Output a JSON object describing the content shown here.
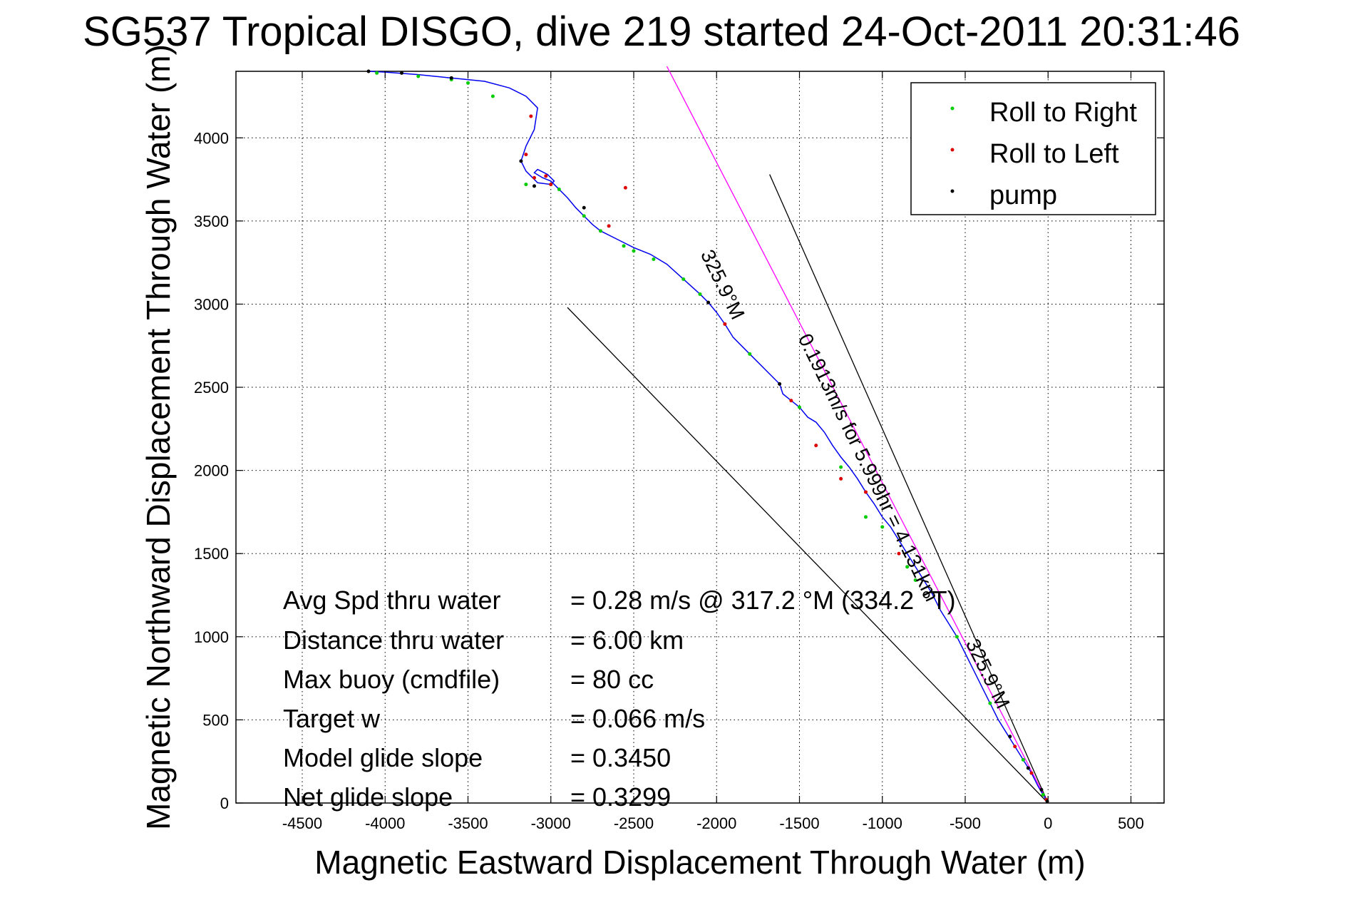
{
  "chart_data": {
    "type": "line",
    "title": "SG537 Tropical DISGO, dive 219 started 24-Oct-2011 20:31:46",
    "xlabel": "Magnetic Eastward Displacement Through Water (m)",
    "ylabel": "Magnetic Northward Displacement Through Water (m)",
    "xlim": [
      -4900,
      700
    ],
    "ylim": [
      0,
      4400
    ],
    "xticks": [
      -4500,
      -4000,
      -3500,
      -3000,
      -2500,
      -2000,
      -1500,
      -1000,
      -500,
      0,
      500
    ],
    "yticks": [
      0,
      500,
      1000,
      1500,
      2000,
      2500,
      3000,
      3500,
      4000
    ],
    "grid": true,
    "legend_position": "top-right",
    "legend": [
      {
        "label": "Roll to Right",
        "color": "#00cc00"
      },
      {
        "label": "Roll to Left",
        "color": "#dd0000"
      },
      {
        "label": "pump",
        "color": "#000000"
      }
    ],
    "track_color": "#0000ee",
    "series": [
      {
        "name": "track",
        "x": [
          0,
          -30,
          -60,
          -100,
          -150,
          -200,
          -250,
          -300,
          -350,
          -400,
          -450,
          -500,
          -550,
          -600,
          -650,
          -700,
          -750,
          -800,
          -850,
          -900,
          -950,
          -1000,
          -1050,
          -1100,
          -1150,
          -1200,
          -1250,
          -1300,
          -1350,
          -1400,
          -1450,
          -1500,
          -1550,
          -1600,
          -1620,
          -1700,
          -1800,
          -1900,
          -1950,
          -2000,
          -2050,
          -2100,
          -2200,
          -2300,
          -2400,
          -2500,
          -2600,
          -2700,
          -2750,
          -2800,
          -2850,
          -2900,
          -2950,
          -2980,
          -3000,
          -3050,
          -3100,
          -3080,
          -3020,
          -2980,
          -3000,
          -3080,
          -3150,
          -3180,
          -3150,
          -3100,
          -3080,
          -3150,
          -3250,
          -3400,
          -3600,
          -3800,
          -4000,
          -4100
        ],
        "y": [
          0,
          50,
          100,
          180,
          260,
          340,
          420,
          500,
          600,
          700,
          800,
          900,
          1000,
          1080,
          1160,
          1260,
          1340,
          1420,
          1500,
          1580,
          1660,
          1720,
          1800,
          1870,
          1950,
          2020,
          2080,
          2150,
          2230,
          2290,
          2320,
          2380,
          2420,
          2460,
          2520,
          2600,
          2700,
          2800,
          2880,
          2950,
          3010,
          3060,
          3150,
          3240,
          3300,
          3340,
          3390,
          3440,
          3480,
          3530,
          3580,
          3640,
          3690,
          3720,
          3740,
          3760,
          3790,
          3810,
          3780,
          3740,
          3720,
          3730,
          3800,
          3860,
          3950,
          4050,
          4180,
          4250,
          4300,
          4340,
          4360,
          4380,
          4395,
          4400
        ]
      },
      {
        "name": "Roll to Right",
        "x": [
          -30,
          -150,
          -350,
          -550,
          -800,
          -850,
          -1000,
          -1100,
          -1250,
          -1500,
          -1800,
          -2100,
          -2200,
          -2380,
          -2500,
          -2560,
          -2700,
          -2800,
          -2950,
          -3000,
          -3150,
          -3350,
          -3500,
          -3600,
          -3800,
          -4050
        ],
        "y": [
          50,
          260,
          600,
          1000,
          1340,
          1420,
          1660,
          1720,
          2020,
          2380,
          2700,
          3060,
          3150,
          3270,
          3320,
          3350,
          3440,
          3530,
          3690,
          3720,
          3720,
          4250,
          4330,
          4350,
          4370,
          4390
        ]
      },
      {
        "name": "Roll to Left",
        "x": [
          -10,
          -100,
          -200,
          -900,
          -1100,
          -1250,
          -1400,
          -1550,
          -1950,
          -2550,
          -2650,
          -3000,
          -3030,
          -3100,
          -3150,
          -3120
        ],
        "y": [
          20,
          180,
          340,
          1500,
          1870,
          1950,
          2150,
          2420,
          2880,
          3700,
          3470,
          3720,
          3770,
          3760,
          3900,
          4130
        ],
        "_": ""
      },
      {
        "name": "pump",
        "x": [
          -5,
          -40,
          -120,
          -230,
          -1620,
          -2050,
          -2800,
          -3100,
          -3180,
          -3600,
          -3900,
          -4100
        ],
        "y": [
          10,
          80,
          210,
          400,
          2520,
          3010,
          3580,
          3710,
          3860,
          4360,
          4390,
          4400
        ]
      }
    ],
    "reference_lines": [
      {
        "name": "heading",
        "x": [
          0,
          -1680
        ],
        "y": [
          0,
          3780
        ],
        "color": "#000000"
      },
      {
        "name": "course",
        "x": [
          0,
          -2300
        ],
        "y": [
          0,
          4430
        ],
        "color": "#ff00ff"
      },
      {
        "name": "error",
        "x": [
          0,
          -2900
        ],
        "y": [
          0,
          2980
        ],
        "color": "#000000"
      }
    ],
    "annotations": [
      {
        "text": "0.1913m/s for 5.999hr = 4.131km",
        "angle": 64,
        "x": -1120,
        "y": 2000
      },
      {
        "text": "325.9°M",
        "angle": 64,
        "x": -2000,
        "y": 3100
      },
      {
        "text": "325.9°M",
        "angle": 64,
        "x": -400,
        "y": 760
      }
    ],
    "stats": [
      {
        "label": "Avg Spd thru water",
        "value": "=  0.28 m/s @ 317.2 °M (334.2 °T)"
      },
      {
        "label": "Distance thru water",
        "value": "=  6.00 km"
      },
      {
        "label": "Max buoy (cmdfile)",
        "value": "= 80 cc"
      },
      {
        "label": "Target w",
        "value": "= 0.066 m/s"
      },
      {
        "label": "Model glide slope",
        "value": "= 0.3450"
      },
      {
        "label": "Net glide slope",
        "value": "= 0.3299"
      }
    ]
  }
}
